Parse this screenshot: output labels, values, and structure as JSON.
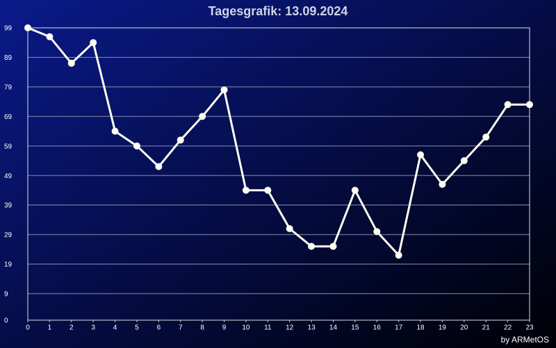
{
  "chart_data": {
    "type": "line",
    "title": "Tagesgrafik: 13.09.2024",
    "footer": "by ARMetOS",
    "x": [
      0,
      1,
      2,
      3,
      4,
      5,
      6,
      7,
      8,
      9,
      10,
      11,
      12,
      13,
      14,
      15,
      16,
      17,
      18,
      19,
      20,
      21,
      22,
      23
    ],
    "series": [
      {
        "color": "#fffff0",
        "values": [
          99,
          96,
          87,
          94,
          64,
          59,
          52,
          61,
          69,
          78,
          44,
          44,
          31,
          25,
          25,
          44,
          30,
          22,
          56,
          46,
          54,
          62,
          73,
          73
        ]
      }
    ],
    "xlim": [
      0,
      23
    ],
    "xticks": [
      0,
      1,
      2,
      3,
      4,
      5,
      6,
      7,
      8,
      9,
      10,
      11,
      12,
      13,
      14,
      15,
      16,
      17,
      18,
      19,
      20,
      21,
      22,
      23
    ],
    "ylim": [
      0,
      99
    ],
    "yticks": [
      0,
      9,
      19,
      29,
      39,
      49,
      59,
      69,
      79,
      89,
      99
    ],
    "grid": true
  }
}
